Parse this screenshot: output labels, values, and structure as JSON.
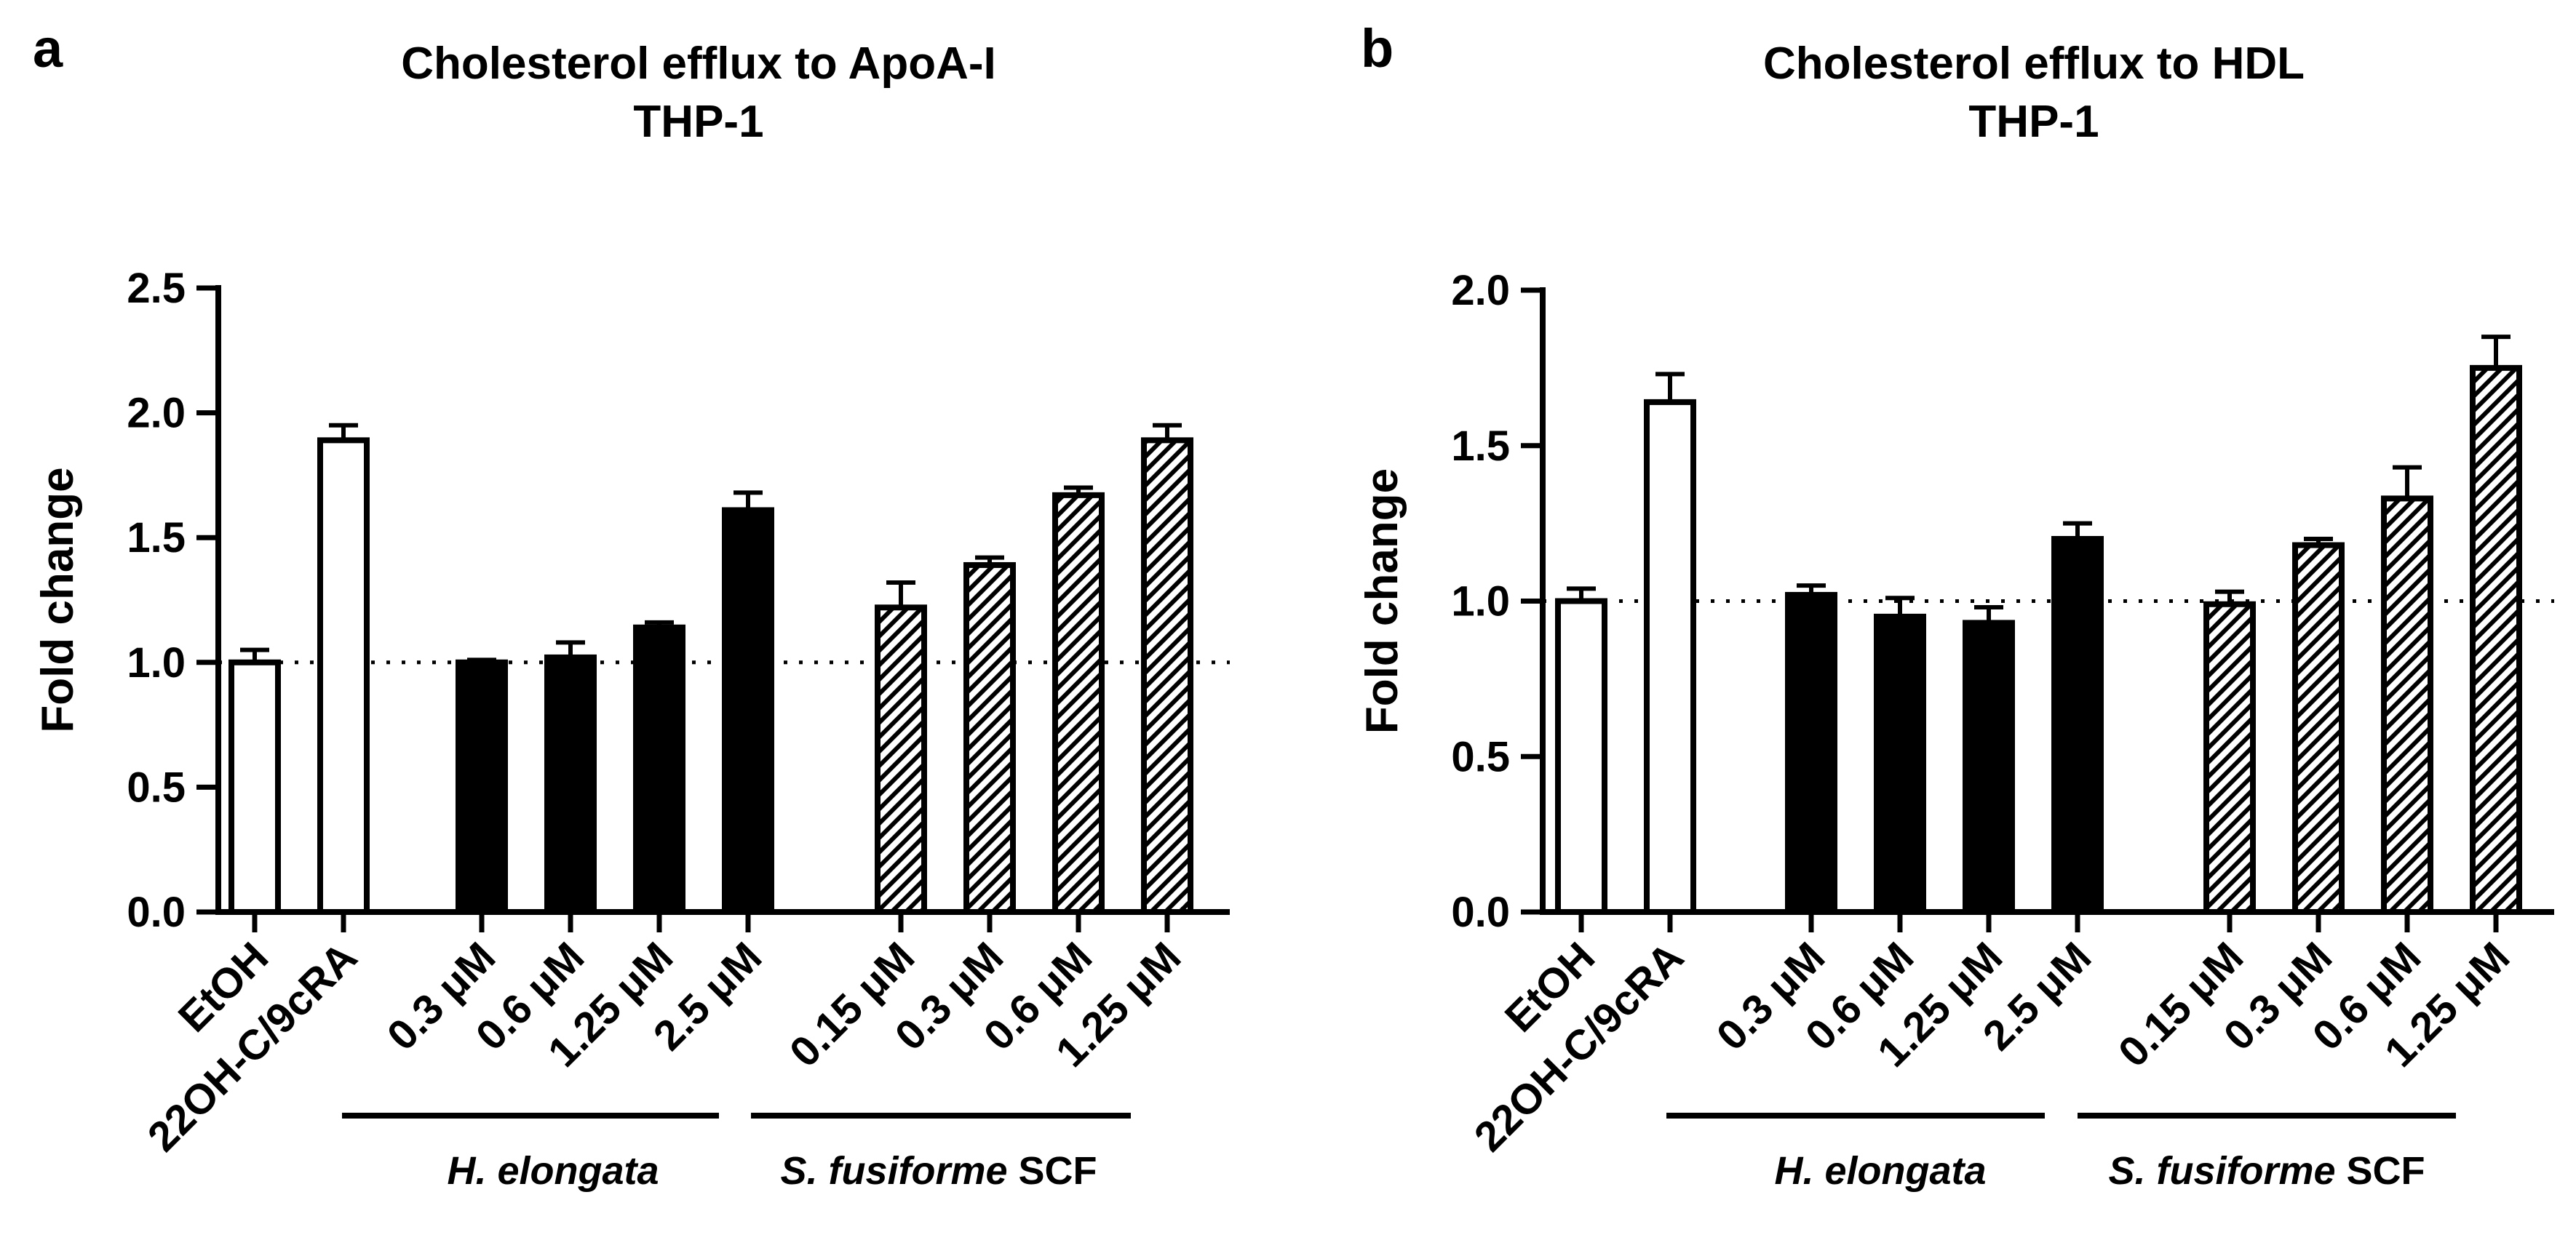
{
  "chart_data": [
    {
      "panel_label": "a",
      "type": "bar",
      "title": [
        "Cholesterol efflux to ApoA-I",
        "THP-1"
      ],
      "ylabel": "Fold change",
      "ylim": [
        0,
        2.5
      ],
      "yticks": [
        "0.0",
        "0.5",
        "1.0",
        "1.5",
        "2.0",
        "2.5"
      ],
      "reference_line": 1.0,
      "categories": [
        "EtOH",
        "22OH-C/9cRA",
        "0.3 μM",
        "0.6 μM",
        "1.25 μM",
        "2.5 μM",
        "0.15 μM",
        "0.3 μM",
        "0.6 μM",
        "1.25 μM"
      ],
      "values": [
        1.0,
        1.89,
        1.0,
        1.02,
        1.14,
        1.61,
        1.22,
        1.39,
        1.67,
        1.89
      ],
      "errors": [
        0.05,
        0.06,
        0.01,
        0.06,
        0.02,
        0.07,
        0.1,
        0.03,
        0.03,
        0.06
      ],
      "fills": [
        "open",
        "open",
        "solid",
        "solid",
        "solid",
        "solid",
        "hatched",
        "hatched",
        "hatched",
        "hatched"
      ],
      "groups": [
        {
          "italic": "H. elongata",
          "suffix": "",
          "members": [
            2,
            5
          ]
        },
        {
          "italic": "S. fusiforme",
          "suffix": " SCF",
          "members": [
            6,
            9
          ]
        }
      ]
    },
    {
      "panel_label": "b",
      "type": "bar",
      "title": [
        "Cholesterol efflux to HDL",
        "THP-1"
      ],
      "ylabel": "Fold change",
      "ylim": [
        0,
        2.0
      ],
      "yticks": [
        "0.0",
        "0.5",
        "1.0",
        "1.5",
        "2.0"
      ],
      "reference_line": 1.0,
      "categories": [
        "EtOH",
        "22OH-C/9cRA",
        "0.3 μM",
        "0.6 μM",
        "1.25 μM",
        "2.5 μM",
        "0.15 μM",
        "0.3 μM",
        "0.6 μM",
        "1.25 μM"
      ],
      "values": [
        1.0,
        1.64,
        1.02,
        0.95,
        0.93,
        1.2,
        0.99,
        1.18,
        1.33,
        1.75
      ],
      "errors": [
        0.04,
        0.09,
        0.03,
        0.06,
        0.05,
        0.05,
        0.04,
        0.02,
        0.1,
        0.1
      ],
      "fills": [
        "open",
        "open",
        "solid",
        "solid",
        "solid",
        "solid",
        "hatched",
        "hatched",
        "hatched",
        "hatched"
      ],
      "groups": [
        {
          "italic": "H. elongata",
          "suffix": "",
          "members": [
            2,
            5
          ]
        },
        {
          "italic": "S. fusiforme",
          "suffix": " SCF",
          "members": [
            6,
            9
          ]
        }
      ]
    }
  ]
}
